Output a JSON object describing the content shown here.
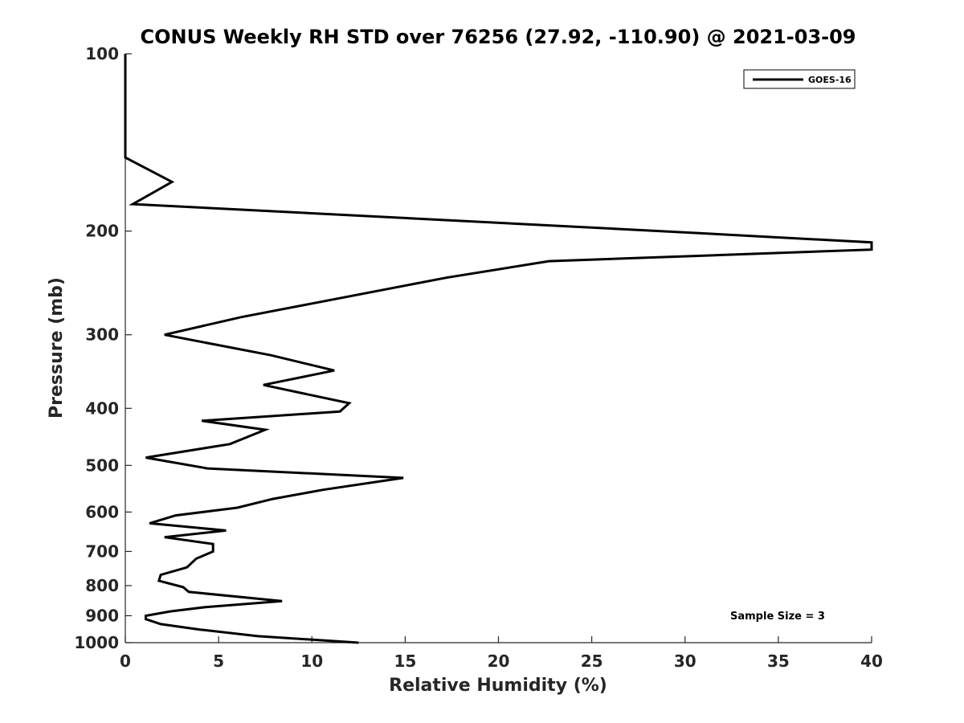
{
  "chart_data": {
    "type": "line",
    "title": "CONUS Weekly RH STD over 76256 (27.92, -110.90) @ 2021-03-09",
    "xlabel": "Relative Humidity (%)",
    "ylabel": "Pressure (mb)",
    "xlim": [
      0,
      40
    ],
    "ylim": [
      100,
      1000
    ],
    "y_scale": "log",
    "y_reversed": true,
    "x_ticks": [
      0,
      5,
      10,
      15,
      20,
      25,
      30,
      35,
      40
    ],
    "y_ticks": [
      100,
      200,
      300,
      400,
      500,
      600,
      700,
      800,
      900,
      1000
    ],
    "grid": false,
    "legend_position": "top-right",
    "annotation": "Sample Size = 3",
    "series": [
      {
        "name": "GOES-16",
        "color": "#000000",
        "points": [
          [
            0,
            100
          ],
          [
            0,
            150
          ],
          [
            2.5,
            165
          ],
          [
            0.4,
            180
          ],
          [
            28.7,
            200
          ],
          [
            40,
            209
          ],
          [
            40,
            215
          ],
          [
            22.7,
            225
          ],
          [
            17.2,
            240
          ],
          [
            6.2,
            280
          ],
          [
            2.1,
            300
          ],
          [
            7.8,
            325
          ],
          [
            11.2,
            345
          ],
          [
            7.4,
            365
          ],
          [
            12.0,
            392
          ],
          [
            11.5,
            405
          ],
          [
            4.1,
            420
          ],
          [
            7.5,
            435
          ],
          [
            5.6,
            460
          ],
          [
            1.1,
            485
          ],
          [
            4.4,
            506
          ],
          [
            14.9,
            525
          ],
          [
            10.6,
            550
          ],
          [
            7.9,
            570
          ],
          [
            6.0,
            590
          ],
          [
            2.7,
            608
          ],
          [
            1.3,
            627
          ],
          [
            5.4,
            645
          ],
          [
            2.1,
            662
          ],
          [
            4.7,
            680
          ],
          [
            4.7,
            700
          ],
          [
            3.8,
            720
          ],
          [
            3.3,
            745
          ],
          [
            1.9,
            767
          ],
          [
            1.8,
            785
          ],
          [
            3.1,
            805
          ],
          [
            3.4,
            820
          ],
          [
            8.4,
            850
          ],
          [
            4.3,
            870
          ],
          [
            2.4,
            885
          ],
          [
            1.1,
            900
          ],
          [
            1.1,
            912
          ],
          [
            1.9,
            930
          ],
          [
            4.0,
            950
          ],
          [
            7.1,
            975
          ],
          [
            12.5,
            1000
          ]
        ]
      }
    ]
  }
}
